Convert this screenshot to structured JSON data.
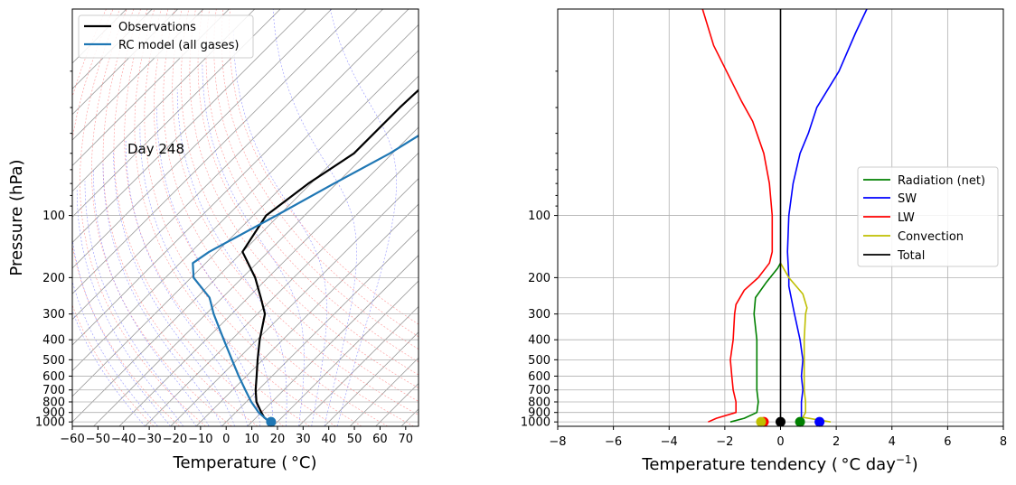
{
  "chart_data": [
    {
      "type": "line",
      "subtype": "skew-T log-p diagram",
      "xlabel": "Temperature ($^\\circ$C)",
      "xlabel_display": "Temperature ( °C)",
      "ylabel": "Pressure (hPa)",
      "annotation": "Day 248",
      "x_ticks": [
        -60,
        -50,
        -40,
        -30,
        -20,
        -10,
        0,
        10,
        20,
        30,
        40,
        50,
        60,
        70
      ],
      "y_ticks": [
        100,
        200,
        300,
        400,
        500,
        600,
        700,
        800,
        900,
        1000
      ],
      "xlim": [
        -60,
        75
      ],
      "ylim": [
        1050,
        10
      ],
      "y_scale": "log",
      "skew": "isotherms tilted 45 degrees",
      "grid": true,
      "legend_position": "upper left",
      "series": [
        {
          "name": "Observations",
          "color": "#000000",
          "points": [
            [
              17,
              1000
            ],
            [
              13,
              950
            ],
            [
              10,
              900
            ],
            [
              4,
              800
            ],
            [
              -1,
              700
            ],
            [
              -6,
              600
            ],
            [
              -12,
              500
            ],
            [
              -19,
              400
            ],
            [
              -27,
              300
            ],
            [
              -35,
              250
            ],
            [
              -45,
              200
            ],
            [
              -60,
              150
            ],
            [
              -65,
              100
            ],
            [
              -61,
              70
            ],
            [
              -55,
              50
            ],
            [
              -55,
              30
            ],
            [
              -54,
              20
            ],
            [
              -47,
              12
            ],
            [
              -40,
              10
            ]
          ]
        },
        {
          "name": "RC model (all gases)",
          "color": "#1f77b4",
          "points": [
            [
              17,
              1000
            ],
            [
              13,
              950
            ],
            [
              9,
              900
            ],
            [
              2,
              800
            ],
            [
              -5,
              700
            ],
            [
              -13,
              600
            ],
            [
              -22,
              500
            ],
            [
              -33,
              400
            ],
            [
              -47,
              300
            ],
            [
              -55,
              250
            ],
            [
              -69,
              200
            ],
            [
              -75,
              170
            ],
            [
              -73,
              150
            ],
            [
              -61,
              100
            ],
            [
              -51,
              70
            ],
            [
              -41,
              50
            ],
            [
              -30,
              30
            ],
            [
              -22,
              20
            ],
            [
              -14,
              12
            ],
            [
              -10,
              10
            ]
          ]
        }
      ],
      "markers": [
        {
          "series": "RC model (all gases)",
          "x": 17.5,
          "y": 1000,
          "color": "#1f77b4"
        }
      ]
    },
    {
      "type": "line",
      "xlabel": "Temperature tendency ($^\\circ$C day$^{-1}$)",
      "xlabel_display": "Temperature tendency ( °C day",
      "xlabel_sup": "−1",
      "xlabel_end": ")",
      "x_ticks": [
        -8,
        -6,
        -4,
        -2,
        0,
        2,
        4,
        6,
        8
      ],
      "y_ticks": [
        100,
        200,
        300,
        400,
        500,
        600,
        700,
        800,
        900,
        1000
      ],
      "xlim": [
        -8,
        8
      ],
      "ylim": [
        1050,
        10
      ],
      "y_scale": "log",
      "grid": true,
      "legend_position": "center right",
      "series": [
        {
          "name": "Radiation (net)",
          "color": "#008000",
          "points": [
            [
              -1.8,
              1000
            ],
            [
              -1.3,
              960
            ],
            [
              -0.85,
              900
            ],
            [
              -0.8,
              800
            ],
            [
              -0.85,
              700
            ],
            [
              -0.85,
              600
            ],
            [
              -0.85,
              500
            ],
            [
              -0.85,
              400
            ],
            [
              -0.95,
              300
            ],
            [
              -0.9,
              250
            ],
            [
              -0.5,
              210
            ],
            [
              -0.1,
              180
            ],
            [
              0.0,
              170
            ]
          ]
        },
        {
          "name": "SW",
          "color": "#0000ff",
          "points": [
            [
              0.75,
              1000
            ],
            [
              0.75,
              900
            ],
            [
              0.75,
              800
            ],
            [
              0.8,
              700
            ],
            [
              0.75,
              600
            ],
            [
              0.8,
              500
            ],
            [
              0.7,
              400
            ],
            [
              0.5,
              300
            ],
            [
              0.3,
              220
            ],
            [
              0.3,
              200
            ],
            [
              0.25,
              150
            ],
            [
              0.3,
              100
            ],
            [
              0.45,
              70
            ],
            [
              0.7,
              50
            ],
            [
              1.0,
              40
            ],
            [
              1.3,
              30
            ],
            [
              2.1,
              20
            ],
            [
              2.7,
              13
            ],
            [
              3.1,
              10
            ]
          ]
        },
        {
          "name": "LW",
          "color": "#ff0000",
          "points": [
            [
              -2.6,
              1000
            ],
            [
              -2.3,
              960
            ],
            [
              -1.6,
              900
            ],
            [
              -1.6,
              800
            ],
            [
              -1.7,
              700
            ],
            [
              -1.75,
              600
            ],
            [
              -1.8,
              500
            ],
            [
              -1.7,
              400
            ],
            [
              -1.65,
              300
            ],
            [
              -1.6,
              270
            ],
            [
              -1.3,
              230
            ],
            [
              -0.8,
              200
            ],
            [
              -0.4,
              170
            ],
            [
              -0.3,
              150
            ],
            [
              -0.3,
              100
            ],
            [
              -0.4,
              70
            ],
            [
              -0.6,
              50
            ],
            [
              -1.0,
              35
            ],
            [
              -1.4,
              28
            ],
            [
              -2.4,
              15
            ],
            [
              -2.8,
              10
            ]
          ]
        },
        {
          "name": "Convection",
          "color": "#bfbf00",
          "points": [
            [
              1.8,
              1000
            ],
            [
              0.8,
              950
            ],
            [
              0.9,
              900
            ],
            [
              0.9,
              800
            ],
            [
              0.85,
              700
            ],
            [
              0.85,
              600
            ],
            [
              0.85,
              500
            ],
            [
              0.85,
              400
            ],
            [
              0.9,
              300
            ],
            [
              0.95,
              280
            ],
            [
              0.8,
              240
            ],
            [
              0.3,
              200
            ],
            [
              0.0,
              170
            ]
          ]
        },
        {
          "name": "Total",
          "color": "#000000",
          "points": [
            [
              0.0,
              1000
            ],
            [
              0.0,
              10
            ]
          ]
        }
      ],
      "markers": [
        {
          "series": "LW",
          "x": -0.6,
          "y": 1000,
          "color": "#ff0000"
        },
        {
          "series": "Convection",
          "x": -0.7,
          "y": 1000,
          "color": "#bfbf00"
        },
        {
          "series": "Radiation (net)",
          "x": 0.7,
          "y": 1000,
          "color": "#008000"
        },
        {
          "series": "SW",
          "x": 1.4,
          "y": 1000,
          "color": "#0000ff"
        },
        {
          "series": "Total",
          "x": 0.0,
          "y": 1000,
          "color": "#000000"
        }
      ]
    }
  ]
}
